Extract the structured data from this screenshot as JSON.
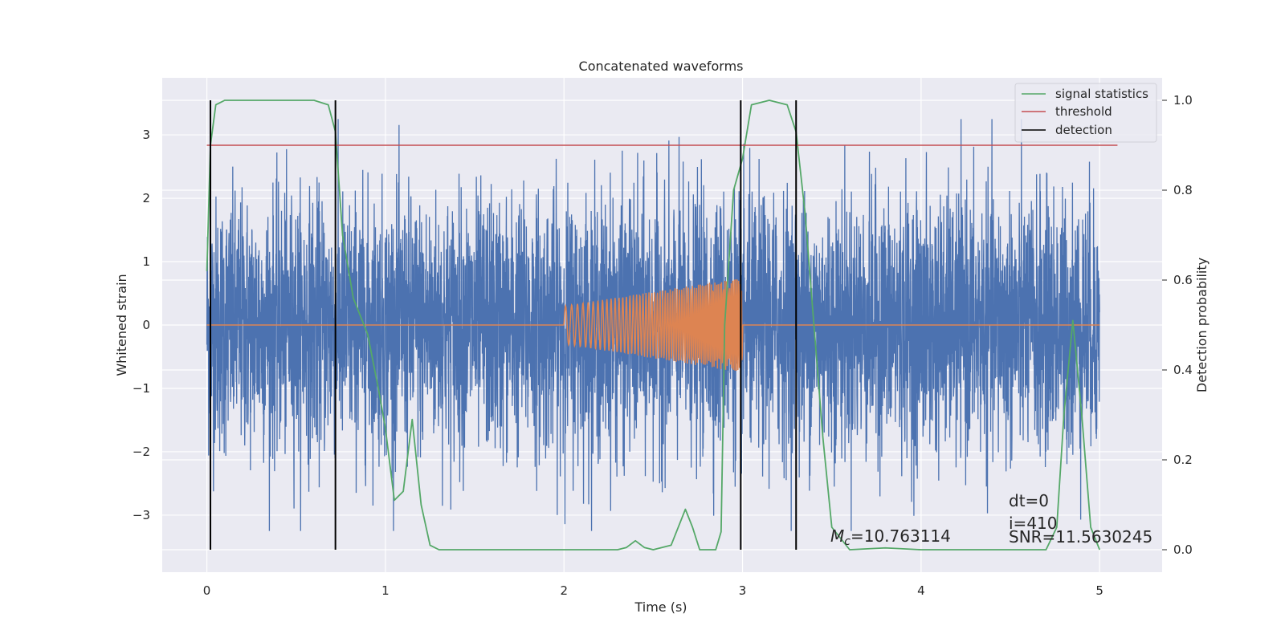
{
  "chart_data": {
    "type": "line",
    "title": "Concatenated waveforms",
    "xlabel": "Time (s)",
    "ylabel": "Whitened strain",
    "ylabel_right": "Detection probability",
    "xlim": [
      -0.25,
      5.35
    ],
    "ylim": [
      -3.9,
      3.9
    ],
    "ylim_right": [
      -0.05,
      1.05
    ],
    "xticks": [
      0,
      1,
      2,
      3,
      4,
      5
    ],
    "xtick_labels": [
      "0",
      "1",
      "2",
      "3",
      "4",
      "5"
    ],
    "yticks": [
      3,
      2,
      1,
      0,
      -1,
      -2,
      -3
    ],
    "ytick_labels": [
      "3",
      "2",
      "1",
      "0",
      "−1",
      "−2",
      "−3"
    ],
    "yticks_right": [
      1.0,
      0.8,
      0.6,
      0.4,
      0.2,
      0.0
    ],
    "ytick_labels_right": [
      "1.0",
      "0.8",
      "0.6",
      "0.4",
      "0.2",
      "0.0"
    ],
    "grid": true,
    "legend_placement": "top-right",
    "colors": {
      "strain": "#4c72b0",
      "injected_waveform": "#dd8452",
      "signal_statistics": "#55a868",
      "threshold": "#c44e52",
      "detection": "#000000",
      "axes_background": "#eaeaf2",
      "grid": "#ffffff"
    },
    "series": [
      {
        "name": "signal statistics",
        "axis": "right",
        "color": "#55a868",
        "x": [
          0.0,
          0.02,
          0.05,
          0.1,
          0.2,
          0.4,
          0.6,
          0.68,
          0.72,
          0.76,
          0.82,
          0.9,
          0.96,
          1.0,
          1.05,
          1.1,
          1.15,
          1.2,
          1.25,
          1.3,
          1.5,
          2.0,
          2.3,
          2.35,
          2.4,
          2.45,
          2.5,
          2.6,
          2.65,
          2.68,
          2.72,
          2.76,
          2.85,
          2.88,
          2.9,
          2.95,
          3.0,
          3.05,
          3.15,
          3.25,
          3.3,
          3.35,
          3.4,
          3.45,
          3.5,
          3.6,
          3.8,
          4.0,
          4.7,
          4.76,
          4.8,
          4.85,
          4.9,
          4.95,
          5.0
        ],
        "y": [
          0.62,
          0.9,
          0.99,
          1.0,
          1.0,
          1.0,
          1.0,
          0.99,
          0.93,
          0.7,
          0.56,
          0.48,
          0.36,
          0.27,
          0.11,
          0.13,
          0.29,
          0.1,
          0.01,
          0.0,
          0.0,
          0.0,
          0.0,
          0.005,
          0.02,
          0.005,
          0.0,
          0.01,
          0.06,
          0.09,
          0.05,
          0.0,
          0.0,
          0.04,
          0.5,
          0.8,
          0.87,
          0.99,
          1.0,
          0.99,
          0.93,
          0.75,
          0.5,
          0.25,
          0.05,
          0.0,
          0.004,
          0.0,
          0.0,
          0.05,
          0.3,
          0.51,
          0.3,
          0.05,
          0.0
        ]
      },
      {
        "name": "threshold",
        "axis": "right",
        "color": "#c44e52",
        "x": [
          0.0,
          5.1
        ],
        "y": [
          0.9,
          0.9
        ]
      },
      {
        "name": "detection",
        "axis": "right",
        "color": "#000000",
        "x": [
          0.02,
          0.72,
          2.99,
          3.3
        ],
        "y_range": [
          0.0,
          1.0
        ]
      },
      {
        "name": "",
        "axis": "left",
        "color": "#4c72b0",
        "x_range": [
          0.0,
          5.0
        ],
        "envelope_sigma": 1.0,
        "peak": 3.25
      },
      {
        "name": "",
        "axis": "left",
        "color": "#dd8452",
        "x_range": [
          0.0,
          5.0
        ],
        "chirp_start": 2.0,
        "chirp_end": 3.0,
        "amplitude_start": 0.3,
        "amplitude_end": 0.75
      }
    ],
    "legend": [
      "signal statistics",
      "threshold",
      "detection"
    ],
    "annotations": {
      "mc_symbol": "M",
      "mc_sub": "c",
      "mc_value": "=10.763114",
      "dt": "dt=0",
      "i": "i=410",
      "snr": "SNR=11.5630245"
    }
  }
}
